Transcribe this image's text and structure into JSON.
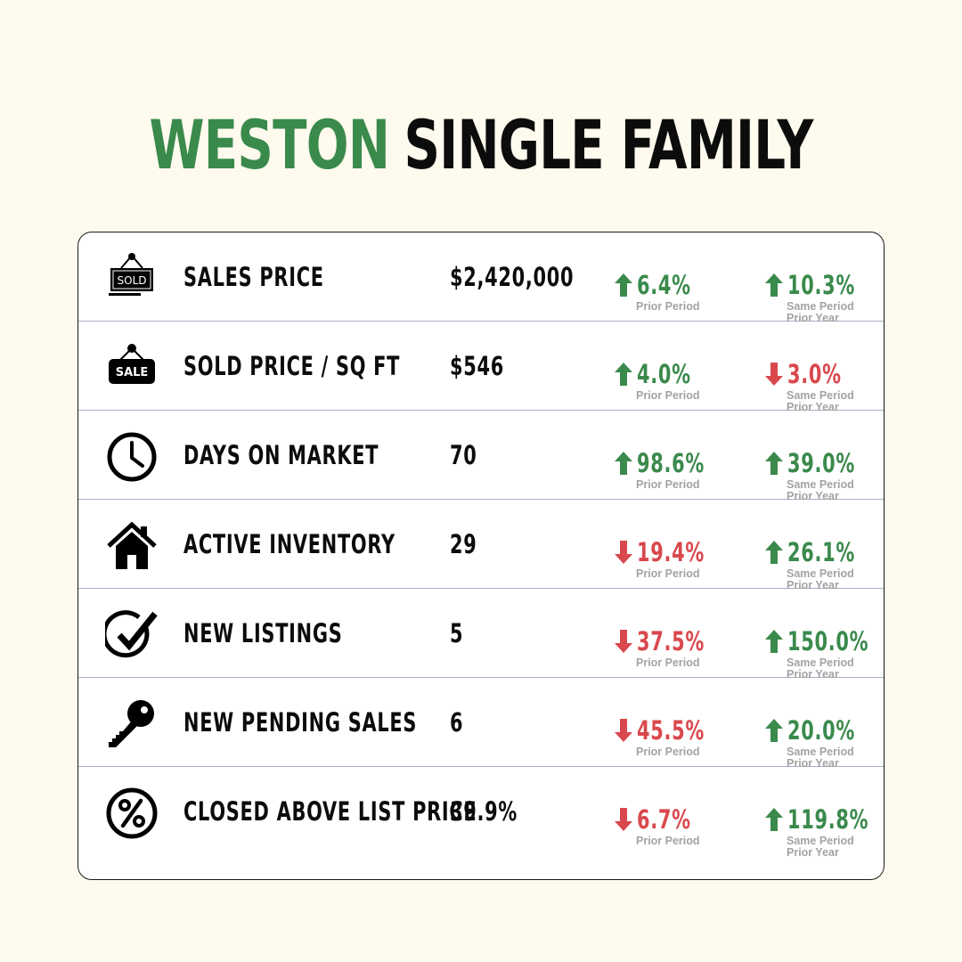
{
  "title": {
    "accent": "WESTON",
    "main": "SINGLE FAMILY"
  },
  "colors": {
    "accent": "#3a8a4c",
    "up": "#3a8a4c",
    "down": "#d9484d",
    "background": "#fefaee",
    "divider": "#a9adc6"
  },
  "labels": {
    "prior_period": "Prior Period",
    "same_period_line1": "Same Period",
    "same_period_line2": "Prior Year"
  },
  "rows": [
    {
      "icon": "sold-sign-icon",
      "icon_text": "SOLD",
      "label": "SALES PRICE",
      "value": "$2,420,000",
      "prior": {
        "direction": "up",
        "pct": "6.4%"
      },
      "year": {
        "direction": "up",
        "pct": "10.3%"
      }
    },
    {
      "icon": "sale-sign-icon",
      "icon_text": "SALE",
      "label": "SOLD PRICE / SQ FT",
      "value": "$546",
      "prior": {
        "direction": "up",
        "pct": "4.0%"
      },
      "year": {
        "direction": "down",
        "pct": "3.0%"
      }
    },
    {
      "icon": "clock-icon",
      "label": "DAYS ON MARKET",
      "value": "70",
      "prior": {
        "direction": "up",
        "pct": "98.6%"
      },
      "year": {
        "direction": "up",
        "pct": "39.0%"
      }
    },
    {
      "icon": "house-icon",
      "label": "ACTIVE INVENTORY",
      "value": "29",
      "prior": {
        "direction": "down",
        "pct": "19.4%"
      },
      "year": {
        "direction": "up",
        "pct": "26.1%"
      }
    },
    {
      "icon": "checkmark-icon",
      "label": "NEW LISTINGS",
      "value": "5",
      "prior": {
        "direction": "down",
        "pct": "37.5%"
      },
      "year": {
        "direction": "up",
        "pct": "150.0%"
      }
    },
    {
      "icon": "key-icon",
      "label": "NEW PENDING SALES",
      "value": "6",
      "prior": {
        "direction": "down",
        "pct": "45.5%"
      },
      "year": {
        "direction": "up",
        "pct": "20.0%"
      }
    },
    {
      "icon": "percent-icon",
      "label": "CLOSED ABOVE LIST PRICE",
      "value": "39.9%",
      "prior": {
        "direction": "down",
        "pct": "6.7%"
      },
      "year": {
        "direction": "up",
        "pct": "119.8%"
      }
    }
  ]
}
